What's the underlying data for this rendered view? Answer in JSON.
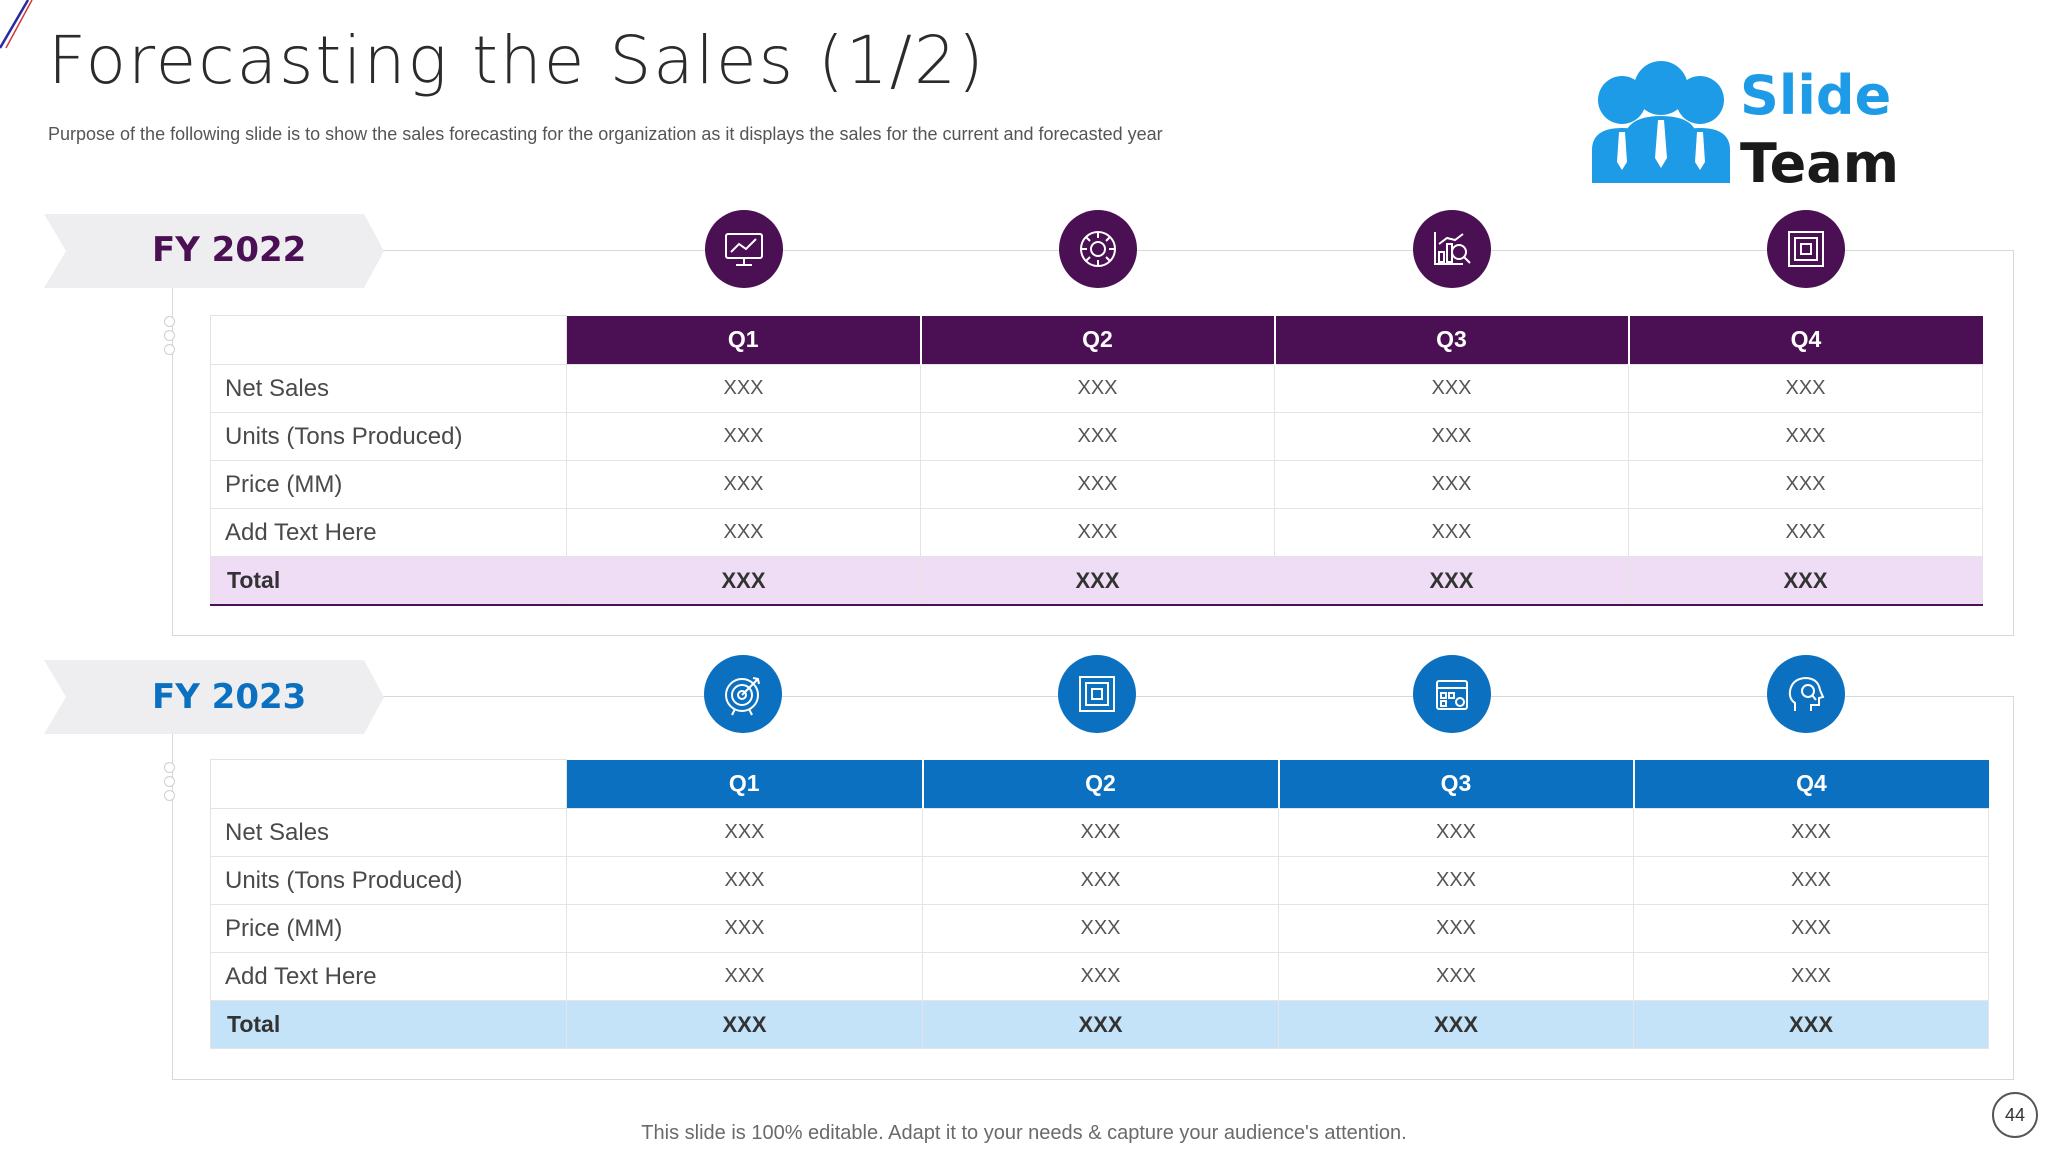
{
  "header": {
    "title": "Forecasting the Sales (1/2)",
    "subtitle": "Purpose of the following slide is to show the sales forecasting for the organization as it displays the sales for the current and forecasted year"
  },
  "logo": {
    "line1": "Slide",
    "line2": "Team"
  },
  "colors": {
    "fy2022_accent": "#4a1053",
    "fy2022_total_bg": "#efdcf5",
    "fy2023_accent": "#0b70c0",
    "fy2023_total_bg": "#c4e3f9",
    "logo_blue": "#1e9be6"
  },
  "sections": [
    {
      "label": "FY 2022",
      "icons": [
        "monitor-chart-icon",
        "gear-circle-icon",
        "chart-magnifier-icon",
        "target-square-icon"
      ],
      "headers": [
        "Q1",
        "Q2",
        "Q3",
        "Q4"
      ],
      "rows": [
        {
          "label": "Net Sales",
          "values": [
            "XXX",
            "XXX",
            "XXX",
            "XXX"
          ]
        },
        {
          "label": "Units (Tons Produced)",
          "values": [
            "XXX",
            "XXX",
            "XXX",
            "XXX"
          ]
        },
        {
          "label": "Price (MM)",
          "values": [
            "XXX",
            "XXX",
            "XXX",
            "XXX"
          ]
        },
        {
          "label": "Add Text Here",
          "values": [
            "XXX",
            "XXX",
            "XXX",
            "XXX"
          ]
        }
      ],
      "total": {
        "label": "Total",
        "values": [
          "XXX",
          "XXX",
          "XXX",
          "XXX"
        ]
      }
    },
    {
      "label": "FY 2023",
      "icons": [
        "target-arrow-icon",
        "target-square-icon",
        "dashboard-gear-icon",
        "head-search-icon"
      ],
      "headers": [
        "Q1",
        "Q2",
        "Q3",
        "Q4"
      ],
      "rows": [
        {
          "label": "Net Sales",
          "values": [
            "XXX",
            "XXX",
            "XXX",
            "XXX"
          ]
        },
        {
          "label": "Units (Tons Produced)",
          "values": [
            "XXX",
            "XXX",
            "XXX",
            "XXX"
          ]
        },
        {
          "label": "Price (MM)",
          "values": [
            "XXX",
            "XXX",
            "XXX",
            "XXX"
          ]
        },
        {
          "label": "Add Text Here",
          "values": [
            "XXX",
            "XXX",
            "XXX",
            "XXX"
          ]
        }
      ],
      "total": {
        "label": "Total",
        "values": [
          "XXX",
          "XXX",
          "XXX",
          "XXX"
        ]
      }
    }
  ],
  "footer": {
    "note": "This slide is 100% editable. Adapt it to your needs & capture your audience's attention.",
    "page_number": "44"
  }
}
